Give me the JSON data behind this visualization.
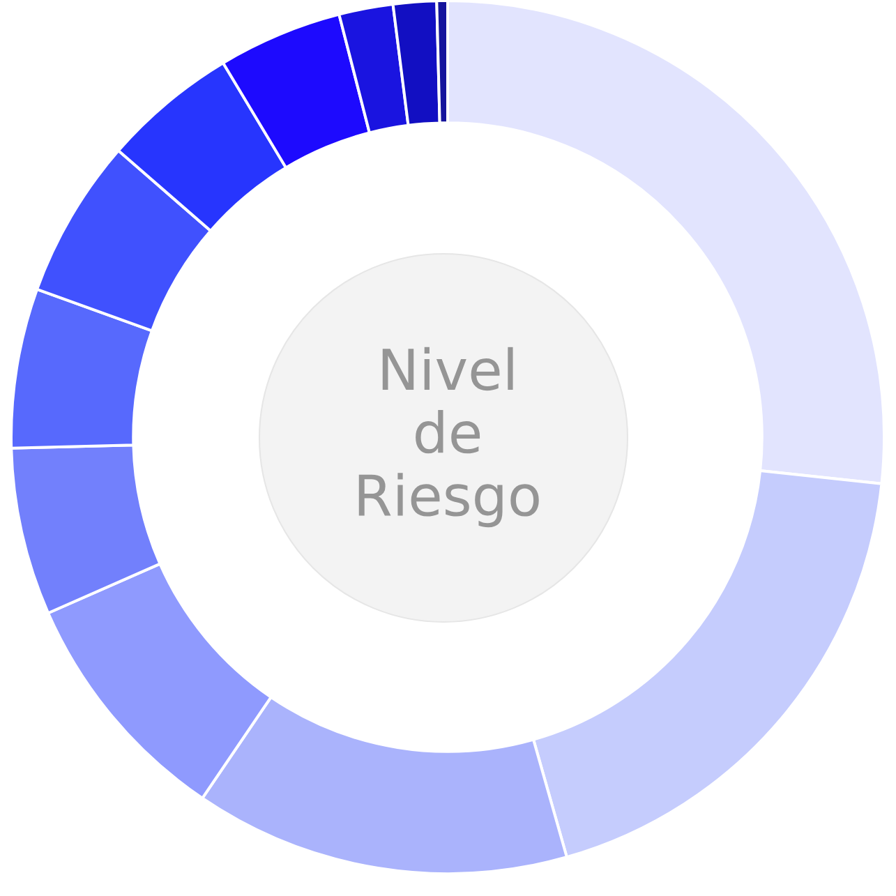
{
  "chart_data": {
    "type": "donut",
    "title": "Nivel\nde\nRiesgo",
    "categories": [
      null,
      null,
      null,
      null,
      null,
      null,
      null,
      null,
      null,
      null,
      null,
      null
    ],
    "values": [
      26.7,
      18.9,
      13.9,
      8.9,
      6.2,
      5.9,
      5.9,
      5.0,
      4.6,
      2.0,
      1.6,
      0.4
    ],
    "colors": [
      "#e2e4fe",
      "#c5ccfd",
      "#aab3fc",
      "#8f9afe",
      "#7280fc",
      "#5769fd",
      "#4051fe",
      "#2735fe",
      "#1d0afe",
      "#1a14e0",
      "#120fc2",
      "#15149c"
    ]
  }
}
